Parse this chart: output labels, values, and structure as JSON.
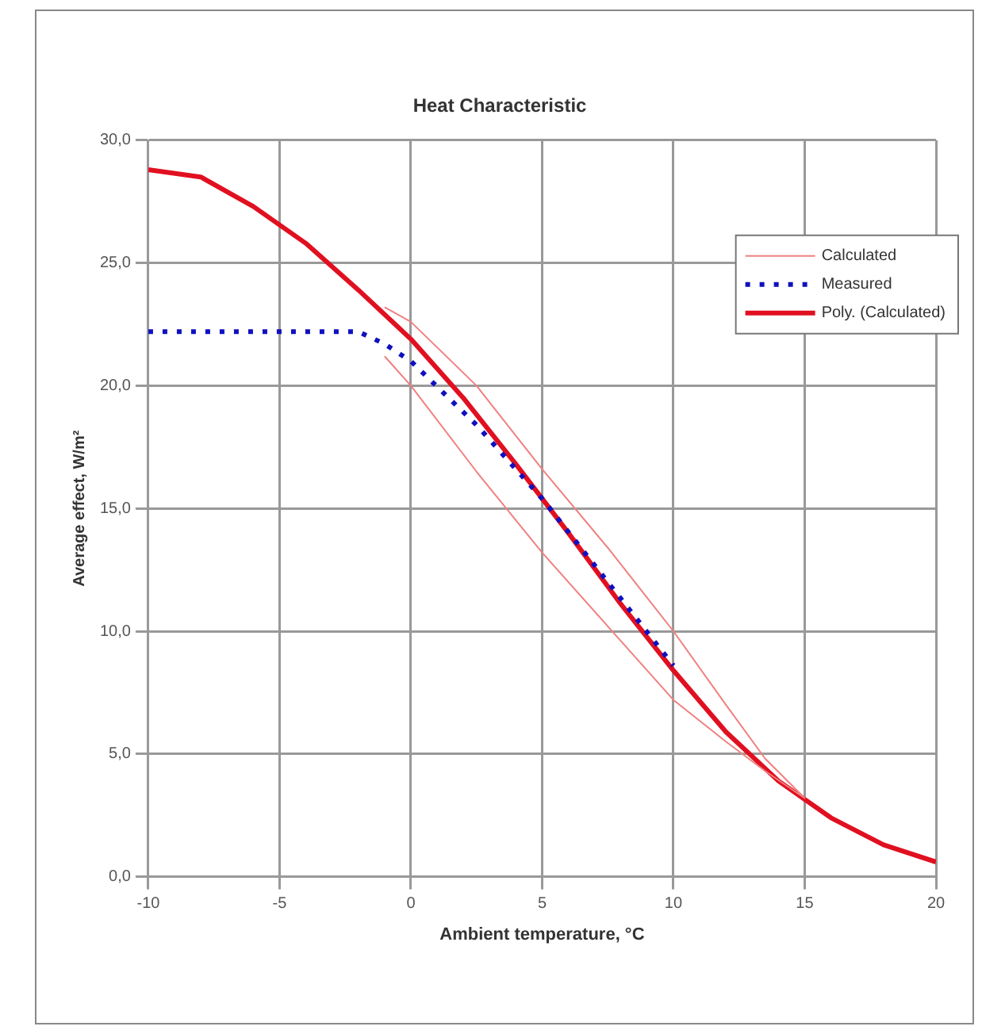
{
  "chart_data": {
    "type": "line",
    "title": "Heat Characteristic",
    "xlabel": "Ambient temperature, °C",
    "ylabel": "Average effect, W/m²",
    "xlim": [
      -10,
      20
    ],
    "xticks": [
      -10,
      -5,
      0,
      5,
      10,
      15,
      20
    ],
    "ylim": [
      0,
      30
    ],
    "yticks": [
      {
        "value": 0,
        "label": "0,0"
      },
      {
        "value": 5,
        "label": "5,0"
      },
      {
        "value": 10,
        "label": "10,0"
      },
      {
        "value": 15,
        "label": "15,0"
      },
      {
        "value": 20,
        "label": "20,0"
      },
      {
        "value": 25,
        "label": "25,0"
      },
      {
        "value": 30,
        "label": "30,0"
      }
    ],
    "grid": true,
    "legend": "top right",
    "marker": "none",
    "series": [
      {
        "name": "Calculated",
        "color": "#f08080",
        "line_style": "solid",
        "x": [
          -1,
          0,
          2.5,
          5,
          7.5,
          10,
          12,
          13.5,
          15,
          13.5,
          12,
          10,
          7.5,
          5,
          2.5,
          0,
          -1
        ],
        "values": [
          23.2,
          22.6,
          20.0,
          16.6,
          13.4,
          10.0,
          7.0,
          4.8,
          3.2,
          4.3,
          5.5,
          7.2,
          10.2,
          13.2,
          16.5,
          20.0,
          21.2
        ]
      },
      {
        "name": "Measured",
        "color": "#1010c0",
        "line_style": "dotted",
        "x": [
          -10,
          -2,
          -1,
          0,
          2.5,
          5,
          7.5,
          10
        ],
        "values": [
          22.2,
          22.2,
          21.7,
          21.0,
          18.4,
          15.4,
          12.0,
          8.6
        ]
      },
      {
        "name": "Poly. (Calculated)",
        "color": "#e01020",
        "line_style": "solid",
        "x": [
          -10,
          -8,
          -6,
          -4,
          -2,
          0,
          2,
          4,
          6,
          8,
          10,
          12,
          14,
          16,
          18,
          20
        ],
        "values": [
          28.8,
          28.5,
          27.3,
          25.8,
          23.9,
          21.9,
          19.5,
          16.8,
          14.0,
          11.1,
          8.4,
          5.9,
          3.9,
          2.4,
          1.3,
          0.6
        ]
      }
    ]
  }
}
